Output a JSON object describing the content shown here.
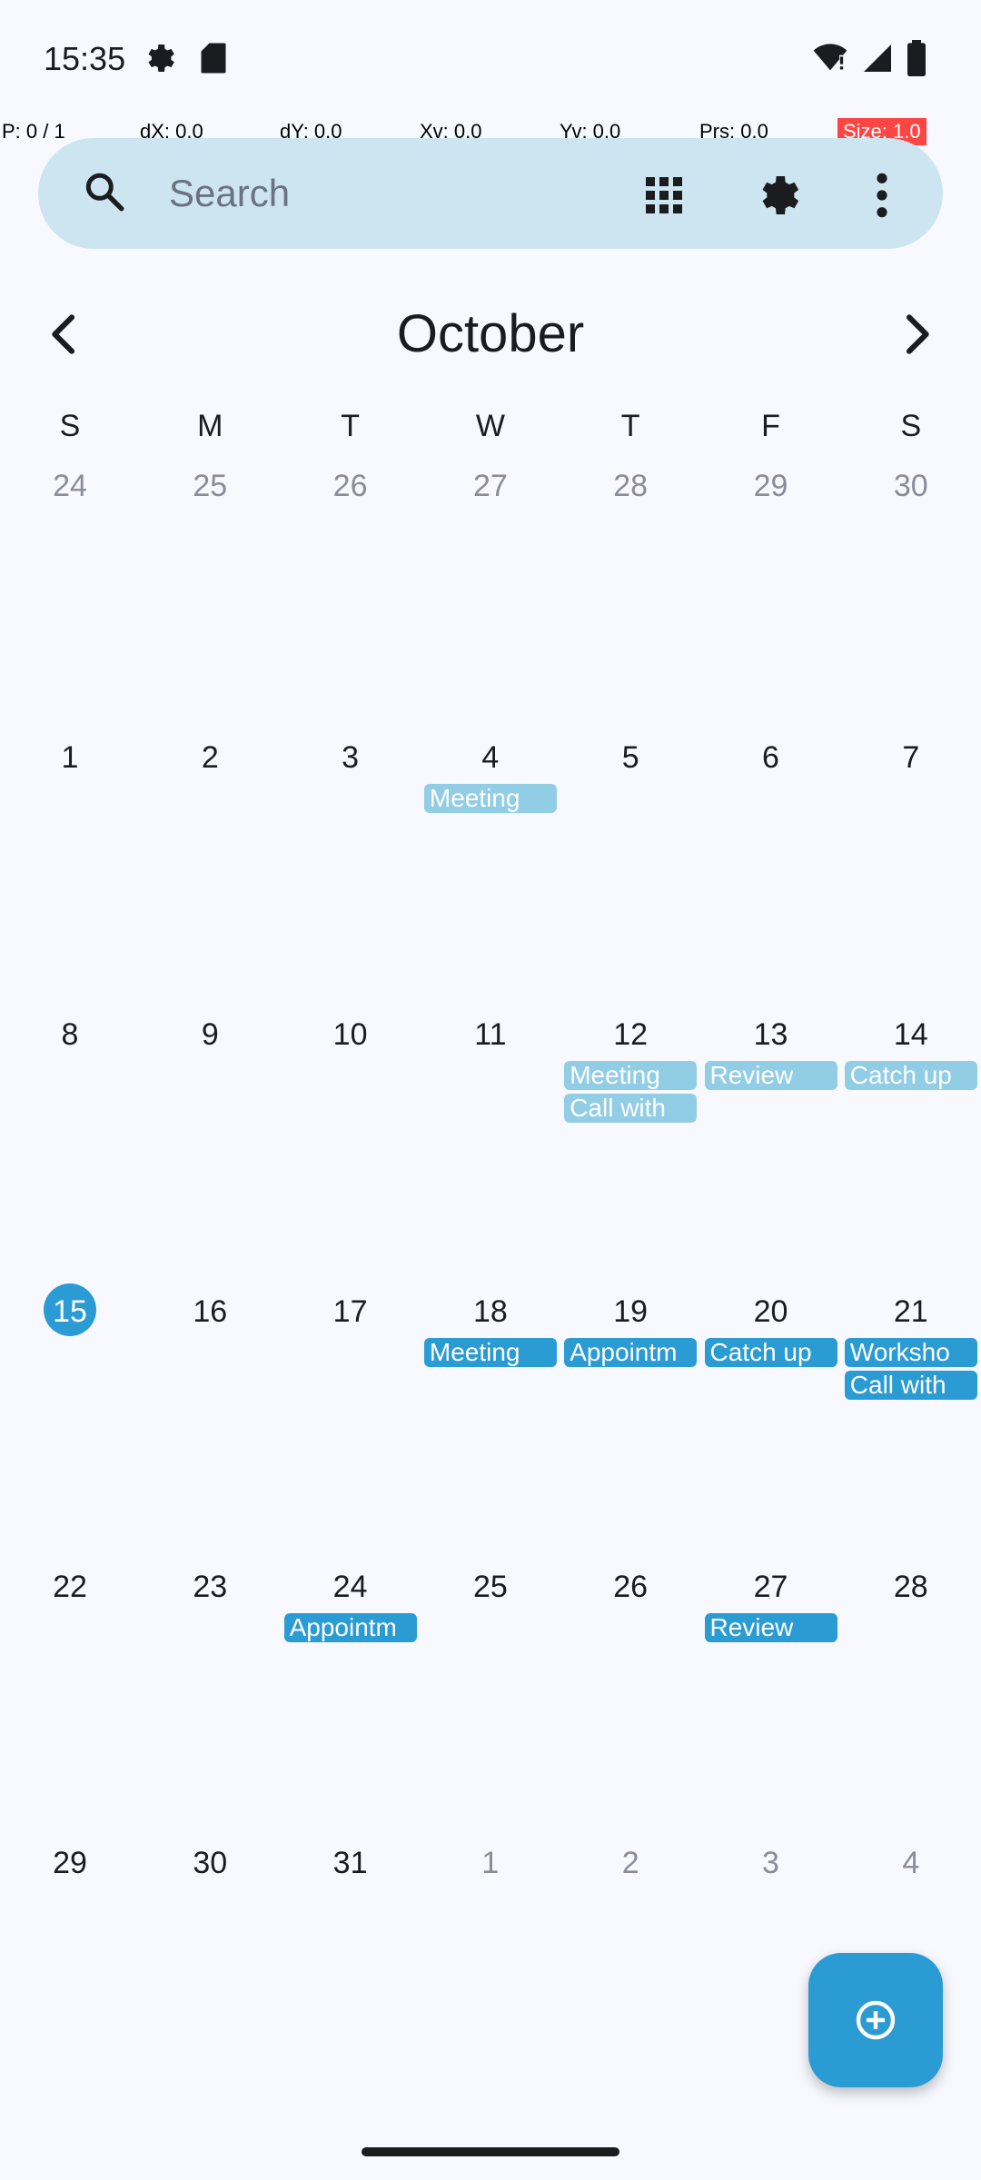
{
  "status_bar": {
    "time": "15:35"
  },
  "overlay": {
    "pointer": "P: 0 / 1",
    "dx": "dX: 0.0",
    "dy": "dY: 0.0",
    "xv": "Xv: 0.0",
    "yv": "Yv: 0.0",
    "prs": "Prs: 0.0",
    "size": "Size: 1.0"
  },
  "search": {
    "placeholder": "Search"
  },
  "toolbar": {
    "icons": [
      "search-icon",
      "grid-view-icon",
      "gear-icon",
      "more-vert-icon"
    ]
  },
  "calendar": {
    "month": "October",
    "weekdays": [
      "S",
      "M",
      "T",
      "W",
      "T",
      "F",
      "S"
    ],
    "weeks": [
      [
        {
          "d": "24",
          "o": true
        },
        {
          "d": "25",
          "o": true
        },
        {
          "d": "26",
          "o": true
        },
        {
          "d": "27",
          "o": true
        },
        {
          "d": "28",
          "o": true
        },
        {
          "d": "29",
          "o": true
        },
        {
          "d": "30",
          "o": true
        }
      ],
      [
        {
          "d": "1"
        },
        {
          "d": "2"
        },
        {
          "d": "3"
        },
        {
          "d": "4"
        },
        {
          "d": "5"
        },
        {
          "d": "6"
        },
        {
          "d": "7"
        }
      ],
      [
        {
          "d": "8"
        },
        {
          "d": "9"
        },
        {
          "d": "10"
        },
        {
          "d": "11"
        },
        {
          "d": "12"
        },
        {
          "d": "13"
        },
        {
          "d": "14"
        }
      ],
      [
        {
          "d": "15",
          "today": true
        },
        {
          "d": "16"
        },
        {
          "d": "17"
        },
        {
          "d": "18"
        },
        {
          "d": "19"
        },
        {
          "d": "20"
        },
        {
          "d": "21"
        }
      ],
      [
        {
          "d": "22"
        },
        {
          "d": "23"
        },
        {
          "d": "24"
        },
        {
          "d": "25"
        },
        {
          "d": "26"
        },
        {
          "d": "27"
        },
        {
          "d": "28"
        }
      ],
      [
        {
          "d": "29"
        },
        {
          "d": "30"
        },
        {
          "d": "31"
        },
        {
          "d": "1",
          "o": true
        },
        {
          "d": "2",
          "o": true
        },
        {
          "d": "3",
          "o": true
        },
        {
          "d": "4",
          "o": true
        }
      ]
    ],
    "events": [
      {
        "week": 1,
        "col": 3,
        "slot": 0,
        "label": "Meeting",
        "past": true
      },
      {
        "week": 2,
        "col": 4,
        "slot": 0,
        "label": "Meeting",
        "past": true
      },
      {
        "week": 2,
        "col": 4,
        "slot": 1,
        "label": "Call with",
        "past": true
      },
      {
        "week": 2,
        "col": 5,
        "slot": 0,
        "label": "Review",
        "past": true
      },
      {
        "week": 2,
        "col": 6,
        "slot": 0,
        "label": "Catch up",
        "past": true
      },
      {
        "week": 3,
        "col": 3,
        "slot": 0,
        "label": "Meeting",
        "past": false
      },
      {
        "week": 3,
        "col": 4,
        "slot": 0,
        "label": "Appointm",
        "past": false
      },
      {
        "week": 3,
        "col": 5,
        "slot": 0,
        "label": "Catch up",
        "past": false
      },
      {
        "week": 3,
        "col": 6,
        "slot": 0,
        "label": "Worksho",
        "past": false
      },
      {
        "week": 3,
        "col": 6,
        "slot": 1,
        "label": "Call with",
        "past": false
      },
      {
        "week": 4,
        "col": 2,
        "slot": 0,
        "label": "Appointm",
        "past": false
      },
      {
        "week": 4,
        "col": 5,
        "slot": 0,
        "label": "Review",
        "past": false
      }
    ]
  },
  "colors": {
    "accent": "#2b9bd4",
    "past_event": "#92cde6",
    "search_bg": "#cce5f0"
  }
}
